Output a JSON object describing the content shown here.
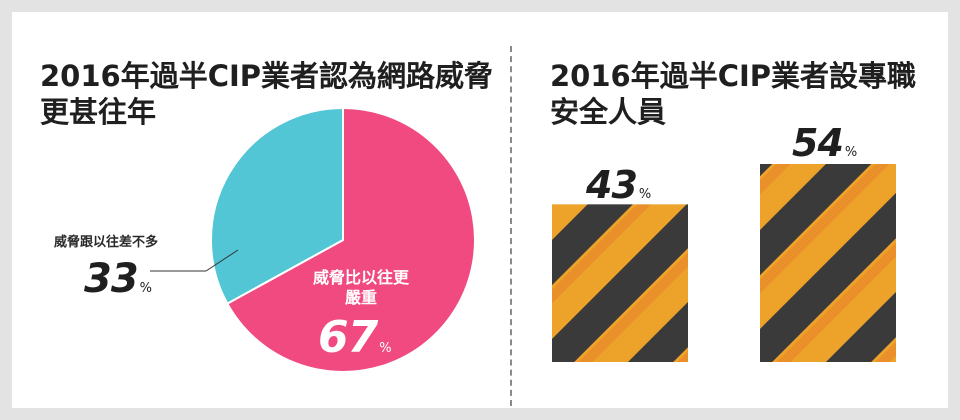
{
  "chart_data": [
    {
      "type": "pie",
      "title": "2016年過半CIP業者認為網路威脅更甚往年",
      "slices": [
        {
          "label": "威脅比以往更嚴重",
          "value": 67,
          "unit": "%",
          "color": "#f04a80"
        },
        {
          "label": "威脅跟以往差不多",
          "value": 33,
          "unit": "%",
          "color": "#52c6d4"
        }
      ]
    },
    {
      "type": "bar",
      "title": "2016年過半CIP業者設專職安全人員",
      "categories": [
        "",
        ""
      ],
      "values": [
        43,
        54
      ],
      "unit": "%",
      "colors": {
        "stripe_light": "#eda22a",
        "stripe_dark": "#3a3a3a",
        "stripe_orange": "#e8892a"
      }
    }
  ]
}
